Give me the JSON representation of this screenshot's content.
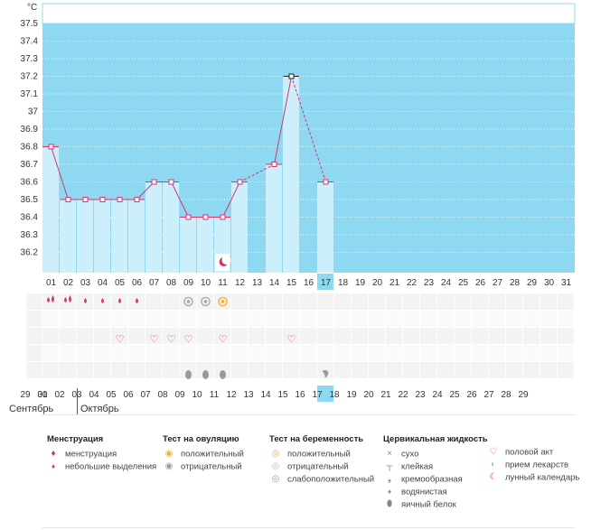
{
  "chart_data": {
    "type": "line",
    "unit": "°C",
    "y_ticks": [
      "37.5",
      "37.4",
      "37.3",
      "37.2",
      "37.1",
      "37",
      "36.9",
      "36.8",
      "36.7",
      "36.6",
      "36.5",
      "36.4",
      "36.3",
      "36.2"
    ],
    "ylim": [
      36.2,
      37.6
    ],
    "x_labels": [
      "01",
      "02",
      "03",
      "04",
      "05",
      "06",
      "07",
      "08",
      "09",
      "10",
      "11",
      "12",
      "13",
      "14",
      "15",
      "16",
      "17",
      "18",
      "19",
      "20",
      "21",
      "22",
      "23",
      "24",
      "25",
      "26",
      "27",
      "28",
      "29",
      "30",
      "31"
    ],
    "selected_day": "17",
    "temperatures": [
      36.8,
      36.5,
      36.5,
      36.5,
      36.5,
      36.5,
      36.6,
      36.6,
      36.4,
      36.4,
      36.4,
      36.6,
      null,
      36.7,
      37.2,
      null,
      36.6
    ],
    "dashed_segments": [
      [
        11,
        13
      ],
      [
        14,
        16
      ]
    ],
    "bar_fill": "#cdeefb",
    "plot_fill": "#8fd8f2",
    "line_color": "#d8356b"
  },
  "rows": {
    "menstruation": {
      "0": "heavy",
      "1": "heavy",
      "2": "light",
      "3": "light",
      "4": "light",
      "5": "light"
    },
    "ovulation_test": {
      "8": "negative",
      "9": "negative",
      "10": "positive"
    },
    "moon_icon_day_index": 10,
    "intercourse": [
      4,
      6,
      7,
      8,
      10,
      14
    ],
    "fluid": {
      "8": "egg-white",
      "9": "egg-white",
      "10": "egg-white",
      "16": "creamy"
    }
  },
  "cycle_days": [
    "29",
    "30",
    "01",
    "02",
    "03",
    "04",
    "05",
    "06",
    "07",
    "08",
    "09",
    "10",
    "11",
    "12",
    "13",
    "14",
    "15",
    "16",
    "17",
    "18",
    "19",
    "20",
    "21",
    "22",
    "23",
    "24",
    "25",
    "26",
    "27",
    "28",
    "29"
  ],
  "cycle_red_idx": [
    0,
    5,
    6,
    11,
    12,
    18,
    19,
    25,
    26
  ],
  "cycle_selected_idx": 16,
  "months": {
    "september": "Сентябрь",
    "october": "Октябрь"
  },
  "legend": {
    "menstruation": {
      "title": "Менструация",
      "items": [
        "менструация",
        "небольшие выделения"
      ]
    },
    "ovulation": {
      "title": "Тест на овуляцию",
      "items": [
        "положительный",
        "отрицательный"
      ]
    },
    "pregnancy": {
      "title": "Тест на беременность",
      "items": [
        "положительный",
        "отрицательный",
        "слабоположительный"
      ]
    },
    "cervical": {
      "title": "Цервикальная жидкость",
      "items": [
        "сухо",
        "клейкая",
        "кремообразная",
        "водянистая",
        "яичный белок"
      ]
    },
    "other": {
      "items": [
        "половой акт",
        "прием лекарств",
        "лунный календарь"
      ]
    }
  },
  "colors": {
    "pink": "#d8356b",
    "blue_selected": "#8fd8f2",
    "grey_icon": "#9a9a9a",
    "orange": "#f5b038"
  }
}
